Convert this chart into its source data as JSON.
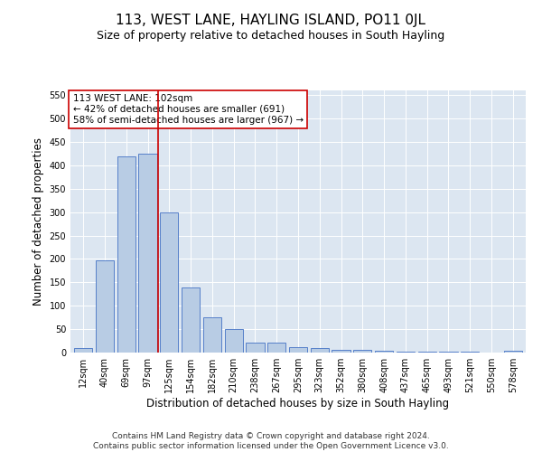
{
  "title": "113, WEST LANE, HAYLING ISLAND, PO11 0JL",
  "subtitle": "Size of property relative to detached houses in South Hayling",
  "xlabel": "Distribution of detached houses by size in South Hayling",
  "ylabel": "Number of detached properties",
  "categories": [
    "12sqm",
    "40sqm",
    "69sqm",
    "97sqm",
    "125sqm",
    "154sqm",
    "182sqm",
    "210sqm",
    "238sqm",
    "267sqm",
    "295sqm",
    "323sqm",
    "352sqm",
    "380sqm",
    "408sqm",
    "437sqm",
    "465sqm",
    "493sqm",
    "521sqm",
    "550sqm",
    "578sqm"
  ],
  "values": [
    10,
    197,
    420,
    425,
    300,
    140,
    75,
    50,
    22,
    22,
    12,
    10,
    5,
    5,
    3,
    2,
    1,
    1,
    1,
    0,
    3
  ],
  "bar_color": "#b8cce4",
  "bar_edge_color": "#4472c4",
  "plot_bg_color": "#dce6f1",
  "red_line_x": 3.5,
  "red_line_color": "#cc0000",
  "annotation_text": "113 WEST LANE: 102sqm\n← 42% of detached houses are smaller (691)\n58% of semi-detached houses are larger (967) →",
  "annotation_box_color": "#ffffff",
  "annotation_box_edge": "#cc0000",
  "ylim": [
    0,
    560
  ],
  "yticks": [
    0,
    50,
    100,
    150,
    200,
    250,
    300,
    350,
    400,
    450,
    500,
    550
  ],
  "footnote": "Contains HM Land Registry data © Crown copyright and database right 2024.\nContains public sector information licensed under the Open Government Licence v3.0.",
  "title_fontsize": 11,
  "subtitle_fontsize": 9,
  "axis_label_fontsize": 8.5,
  "tick_fontsize": 7,
  "footnote_fontsize": 6.5,
  "annotation_fontsize": 7.5
}
